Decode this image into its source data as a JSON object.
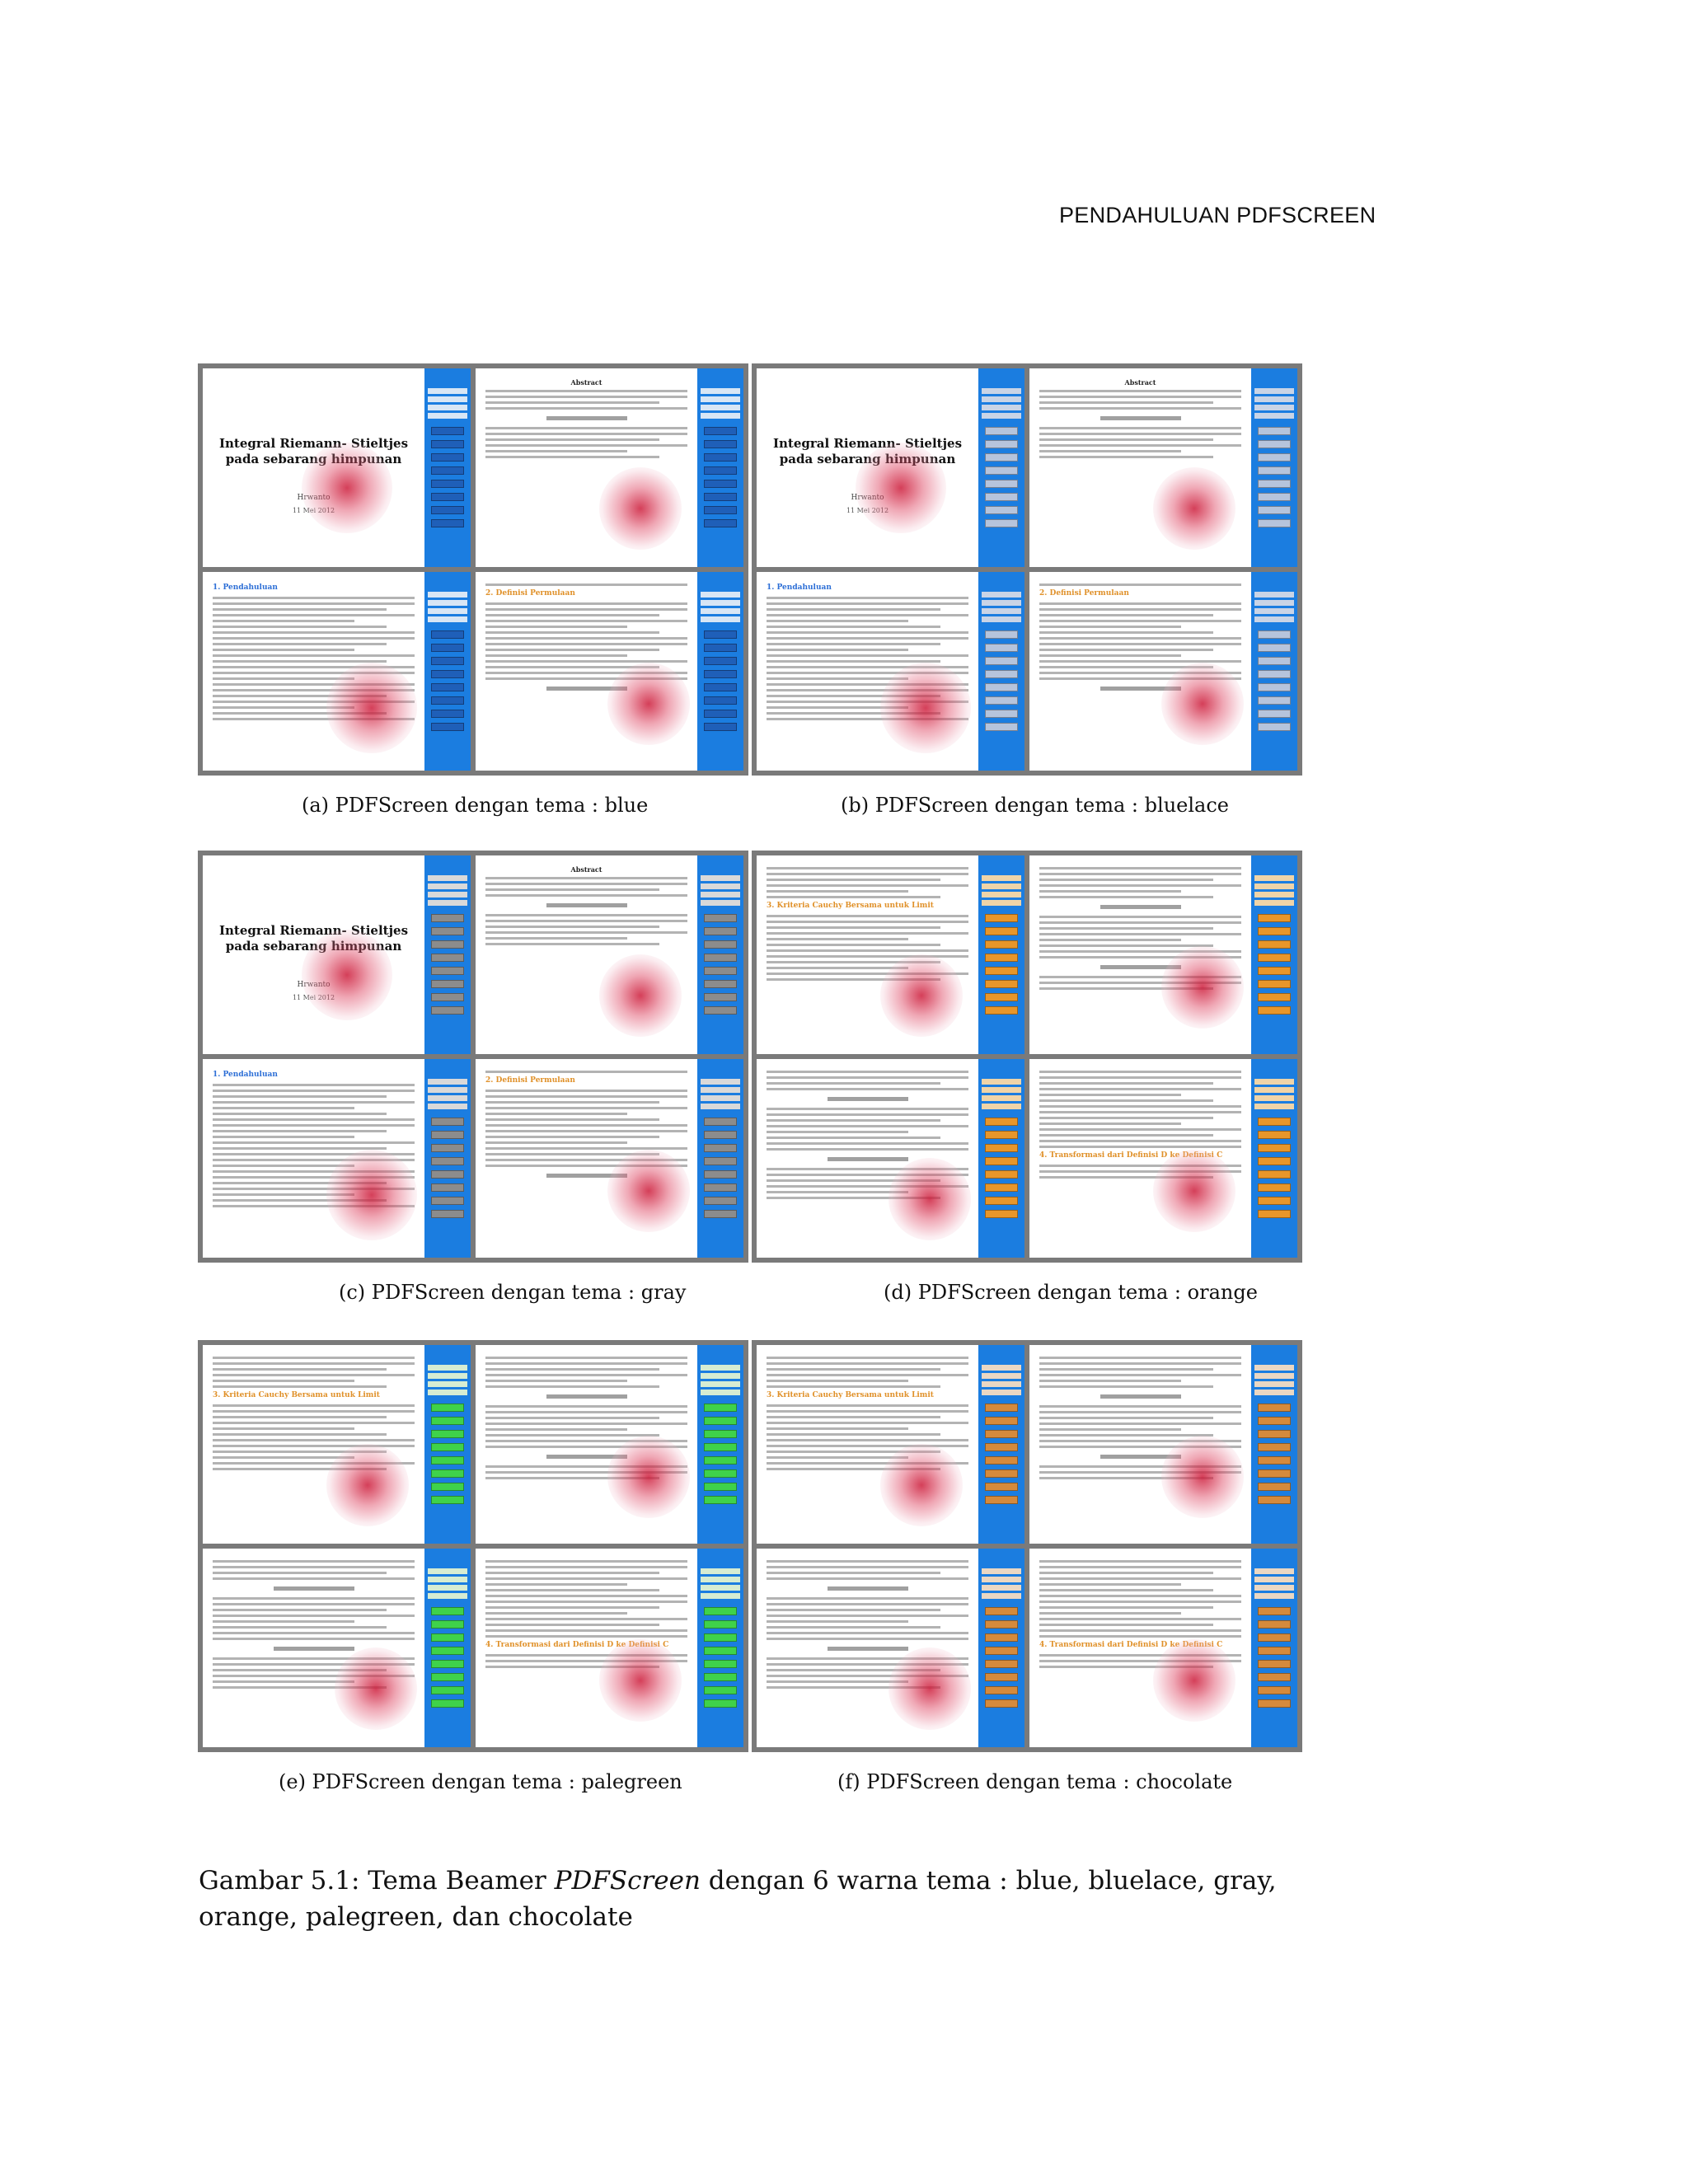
{
  "header": {
    "running_title": "PENDAHULUAN PDFSCREEN"
  },
  "slides": {
    "title_text": "Integral Riemann- Stieltjes pada sebarang himpunan",
    "author": "Hrwanto",
    "date": "11 Mei 2012",
    "abstract_heading": "Abstract",
    "section1": "1. Pendahuluan",
    "section2": "2. Definisi Permulaan",
    "section3": "3. Kriteria Cauchy Bersama untuk Limit",
    "section4": "4. Transformasi dari Definisi D ke Definisi C"
  },
  "panels": [
    {
      "label": "(a)  PDFScreen dengan tema : blue",
      "sidebar_color": "#1b7de0",
      "toc_color": "#d8e6f5",
      "button_color": "#1f5fb8"
    },
    {
      "label": "(b)  PDFScreen dengan tema : bluelace",
      "sidebar_color": "#1b7de0",
      "toc_color": "#c9d4e6",
      "button_color": "#b6c4dc"
    },
    {
      "label": "(c)  PDFScreen dengan tema : gray",
      "sidebar_color": "#1b7de0",
      "toc_color": "#d9d9d9",
      "button_color": "#8c8c8c"
    },
    {
      "label": "(d)  PDFScreen dengan tema : orange",
      "sidebar_color": "#1b7de0",
      "toc_color": "#efd4a8",
      "button_color": "#e8962a"
    },
    {
      "label": "(e)  PDFScreen dengan tema : palegreen",
      "sidebar_color": "#1b7de0",
      "toc_color": "#d6ecd2",
      "button_color": "#3fd24a"
    },
    {
      "label": "(f)  PDFScreen dengan tema : chocolate",
      "sidebar_color": "#1b7de0",
      "toc_color": "#ead7c3",
      "button_color": "#d58a3c"
    }
  ],
  "figure_caption": {
    "prefix": "Gambar 5.1: Tema Beamer ",
    "emph": "PDFScreen",
    "suffix": " dengan 6 warna tema : blue, bluelace, gray, orange, palegreen, dan chocolate"
  }
}
